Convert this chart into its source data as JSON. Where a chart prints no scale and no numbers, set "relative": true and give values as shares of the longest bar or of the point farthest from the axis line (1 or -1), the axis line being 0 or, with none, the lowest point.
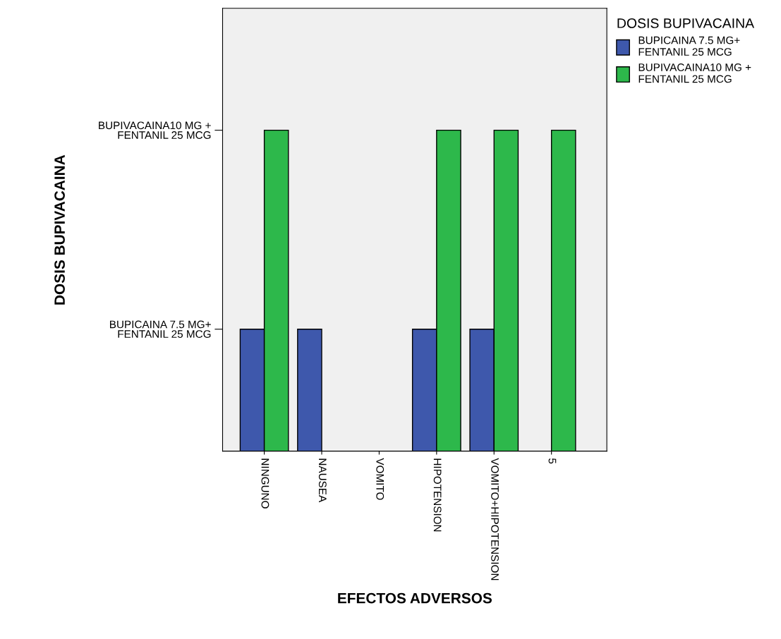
{
  "chart_data": {
    "type": "bar",
    "relative": true,
    "xlabel": "EFECTOS ADVERSOS",
    "legend_title": "DOSIS BUPIVACAINA",
    "categories": [
      "NINGUNO",
      "NAUSEA",
      "VOMITO",
      "HIPOTENSION",
      "VOMITO+HIPOTENSION",
      "5"
    ],
    "series": [
      {
        "name": "BUPICAINA 7.5 MG+\nFENTANIL 25 MCG",
        "color": "#3e58ac",
        "values": [
          0.38,
          0.38,
          null,
          0.38,
          0.38,
          null
        ]
      },
      {
        "name": "BUPIVACAINA10 MG +\nFENTANIL 25 MCG",
        "color": "#2db84b",
        "values": [
          1,
          null,
          null,
          1,
          1,
          1
        ]
      }
    ],
    "annotations": [
      "BUPICAINA 7.5 MG+\nFENTANIL 25 MCG",
      "BUPIVACAINA10 MG +\nFENTANIL 25 MCG",
      "DOSIS BUPIVACAINA"
    ],
    "grid": false,
    "legend": "top right"
  }
}
